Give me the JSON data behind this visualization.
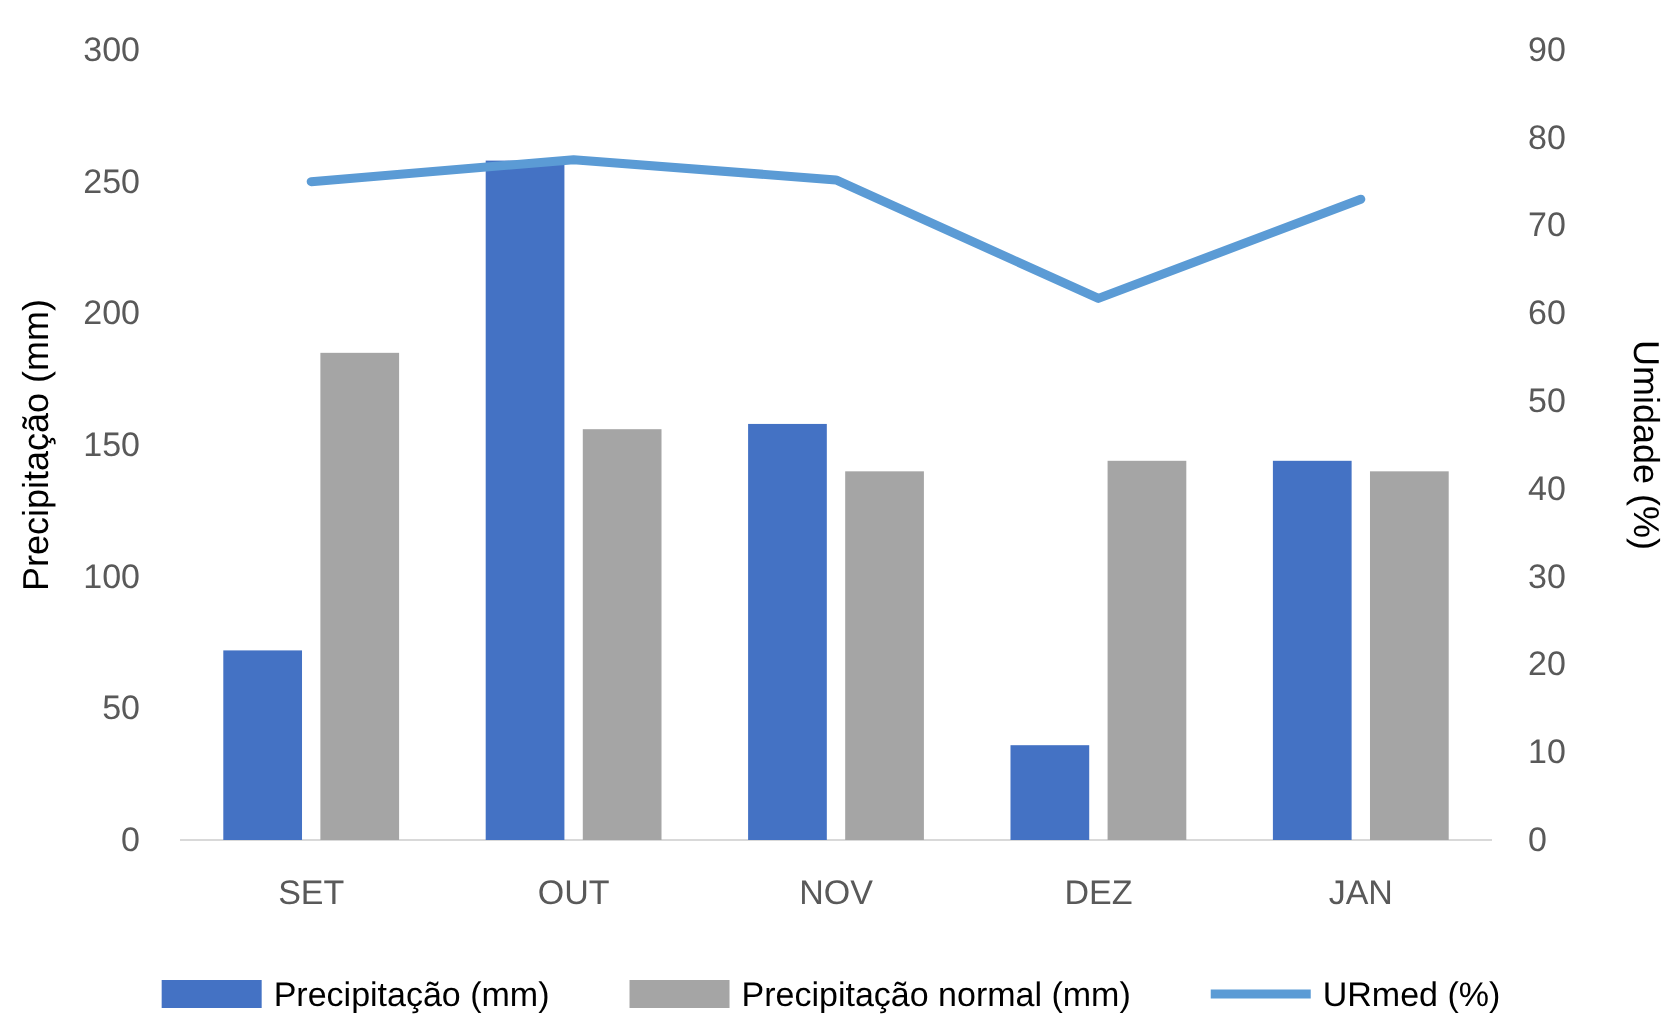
{
  "chart_data": {
    "type": "bar",
    "categories": [
      "SET",
      "OUT",
      "NOV",
      "DEZ",
      "JAN"
    ],
    "series": [
      {
        "name": "Precipitação (mm)",
        "color": "#4472c4",
        "values": [
          72,
          258,
          158,
          36,
          144
        ]
      },
      {
        "name": "Precipitação normal (mm)",
        "color": "#a5a5a5",
        "values": [
          185,
          156,
          140,
          144,
          140
        ]
      },
      {
        "name": "URmed (%)",
        "color": "#5b9bd5",
        "type": "line",
        "axis": "y2",
        "values": [
          75,
          77.5,
          75.2,
          61.7,
          73
        ]
      }
    ],
    "ylabel": "Precipitação (mm)",
    "y2label": "Umidade (%)",
    "ylim": [
      0,
      300
    ],
    "yticks": [
      0,
      50,
      100,
      150,
      200,
      250,
      300
    ],
    "y2lim": [
      0,
      90
    ],
    "y2ticks": [
      0,
      10,
      20,
      30,
      40,
      50,
      60,
      70,
      80,
      90
    ],
    "legend": "bottom",
    "grid": false
  }
}
